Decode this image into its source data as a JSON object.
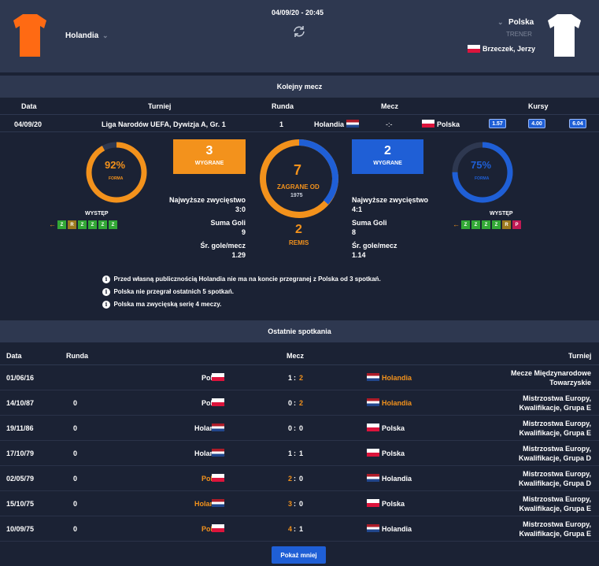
{
  "header": {
    "datetime": "04/09/20 - 20:45",
    "home_team": "Holandia",
    "away_team": "Polska",
    "coach_label": "TRENER",
    "coach_name": "Brzeczek, Jerzy",
    "home_shirt_color": "#ff6a13",
    "away_shirt_color": "#ffffff"
  },
  "next_match": {
    "section_title": "Kolejny mecz",
    "columns": [
      "Data",
      "Turniej",
      "Runda",
      "Mecz",
      "Kursy"
    ],
    "date": "04/09/20",
    "tournament": "Liga Narodów UEFA, Dywizja A, Gr. 1",
    "round": "1",
    "home": "Holandia",
    "score": "-:-",
    "away": "Polska",
    "odds": [
      "1.57",
      "4.00",
      "6.04"
    ]
  },
  "stats": {
    "home_form_pct": "92%",
    "home_form_value": 0.92,
    "away_form_pct": "75%",
    "away_form_value": 0.75,
    "form_label": "FORMA",
    "appearance_label": "WYSTĘP",
    "home_form": [
      "Z",
      "R",
      "Z",
      "Z",
      "Z",
      "Z"
    ],
    "away_form": [
      "Z",
      "Z",
      "Z",
      "Z",
      "R",
      "P"
    ],
    "home_wins": "3",
    "away_wins": "2",
    "wins_label": "WYGRANE",
    "played": "7",
    "played_label": "ZAGRANE OD",
    "played_since": "1975",
    "draws": "2",
    "draws_label": "REMIS",
    "home_stats": [
      {
        "label": "Najwyższe zwycięstwo",
        "value": "3:0"
      },
      {
        "label": "Suma Goli",
        "value": "9"
      },
      {
        "label": "Śr. gole/mecz",
        "value": "1.29"
      }
    ],
    "away_stats": [
      {
        "label": "Najwyższe zwycięstwo",
        "value": "4:1"
      },
      {
        "label": "Suma Goli",
        "value": "8"
      },
      {
        "label": "Śr. gole/mecz",
        "value": "1.14"
      }
    ],
    "notes": [
      "Przed własną publicznością Holandia nie ma na koncie przegranej z Polska od 3 spotkań.",
      "Polska nie przegrał ostatnich 5 spotkań.",
      "Polska ma zwycięską serię 4 meczy."
    ],
    "home_color": "#f3921c",
    "away_color": "#1f5fd6"
  },
  "last_matches": {
    "section_title": "Ostatnie spotkania",
    "columns": [
      "Data",
      "Runda",
      "Mecz",
      "Turniej"
    ],
    "rows": [
      {
        "date": "01/06/16",
        "round": "",
        "home": "Polska",
        "home_flag": "pl",
        "hs": "1",
        "as": "2",
        "away": "Holandia",
        "away_flag": "nl",
        "winner": "away",
        "tournament": [
          "Mecze Międzynarodowe",
          "Towarzyskie"
        ]
      },
      {
        "date": "14/10/87",
        "round": "0",
        "home": "Polska",
        "home_flag": "pl",
        "hs": "0",
        "as": "2",
        "away": "Holandia",
        "away_flag": "nl",
        "winner": "away",
        "tournament": [
          "Mistrzostwa Europy,",
          "Kwalifikacje, Grupa E"
        ]
      },
      {
        "date": "19/11/86",
        "round": "0",
        "home": "Holandia",
        "home_flag": "nl",
        "hs": "0",
        "as": "0",
        "away": "Polska",
        "away_flag": "pl",
        "winner": "none",
        "tournament": [
          "Mistrzostwa Europy,",
          "Kwalifikacje, Grupa E"
        ]
      },
      {
        "date": "17/10/79",
        "round": "0",
        "home": "Holandia",
        "home_flag": "nl",
        "hs": "1",
        "as": "1",
        "away": "Polska",
        "away_flag": "pl",
        "winner": "none",
        "tournament": [
          "Mistrzostwa Europy,",
          "Kwalifikacje, Grupa D"
        ]
      },
      {
        "date": "02/05/79",
        "round": "0",
        "home": "Polska",
        "home_flag": "pl",
        "hs": "2",
        "as": "0",
        "away": "Holandia",
        "away_flag": "nl",
        "winner": "home",
        "tournament": [
          "Mistrzostwa Europy,",
          "Kwalifikacje, Grupa D"
        ]
      },
      {
        "date": "15/10/75",
        "round": "0",
        "home": "Holandia",
        "home_flag": "nl",
        "hs": "3",
        "as": "0",
        "away": "Polska",
        "away_flag": "pl",
        "winner": "home",
        "tournament": [
          "Mistrzostwa Europy,",
          "Kwalifikacje, Grupa E"
        ]
      },
      {
        "date": "10/09/75",
        "round": "0",
        "home": "Polska",
        "home_flag": "pl",
        "hs": "4",
        "as": "1",
        "away": "Holandia",
        "away_flag": "nl",
        "winner": "home",
        "tournament": [
          "Mistrzostwa Europy,",
          "Kwalifikacje, Grupa E"
        ]
      }
    ],
    "show_less": "Pokaż mniej"
  }
}
